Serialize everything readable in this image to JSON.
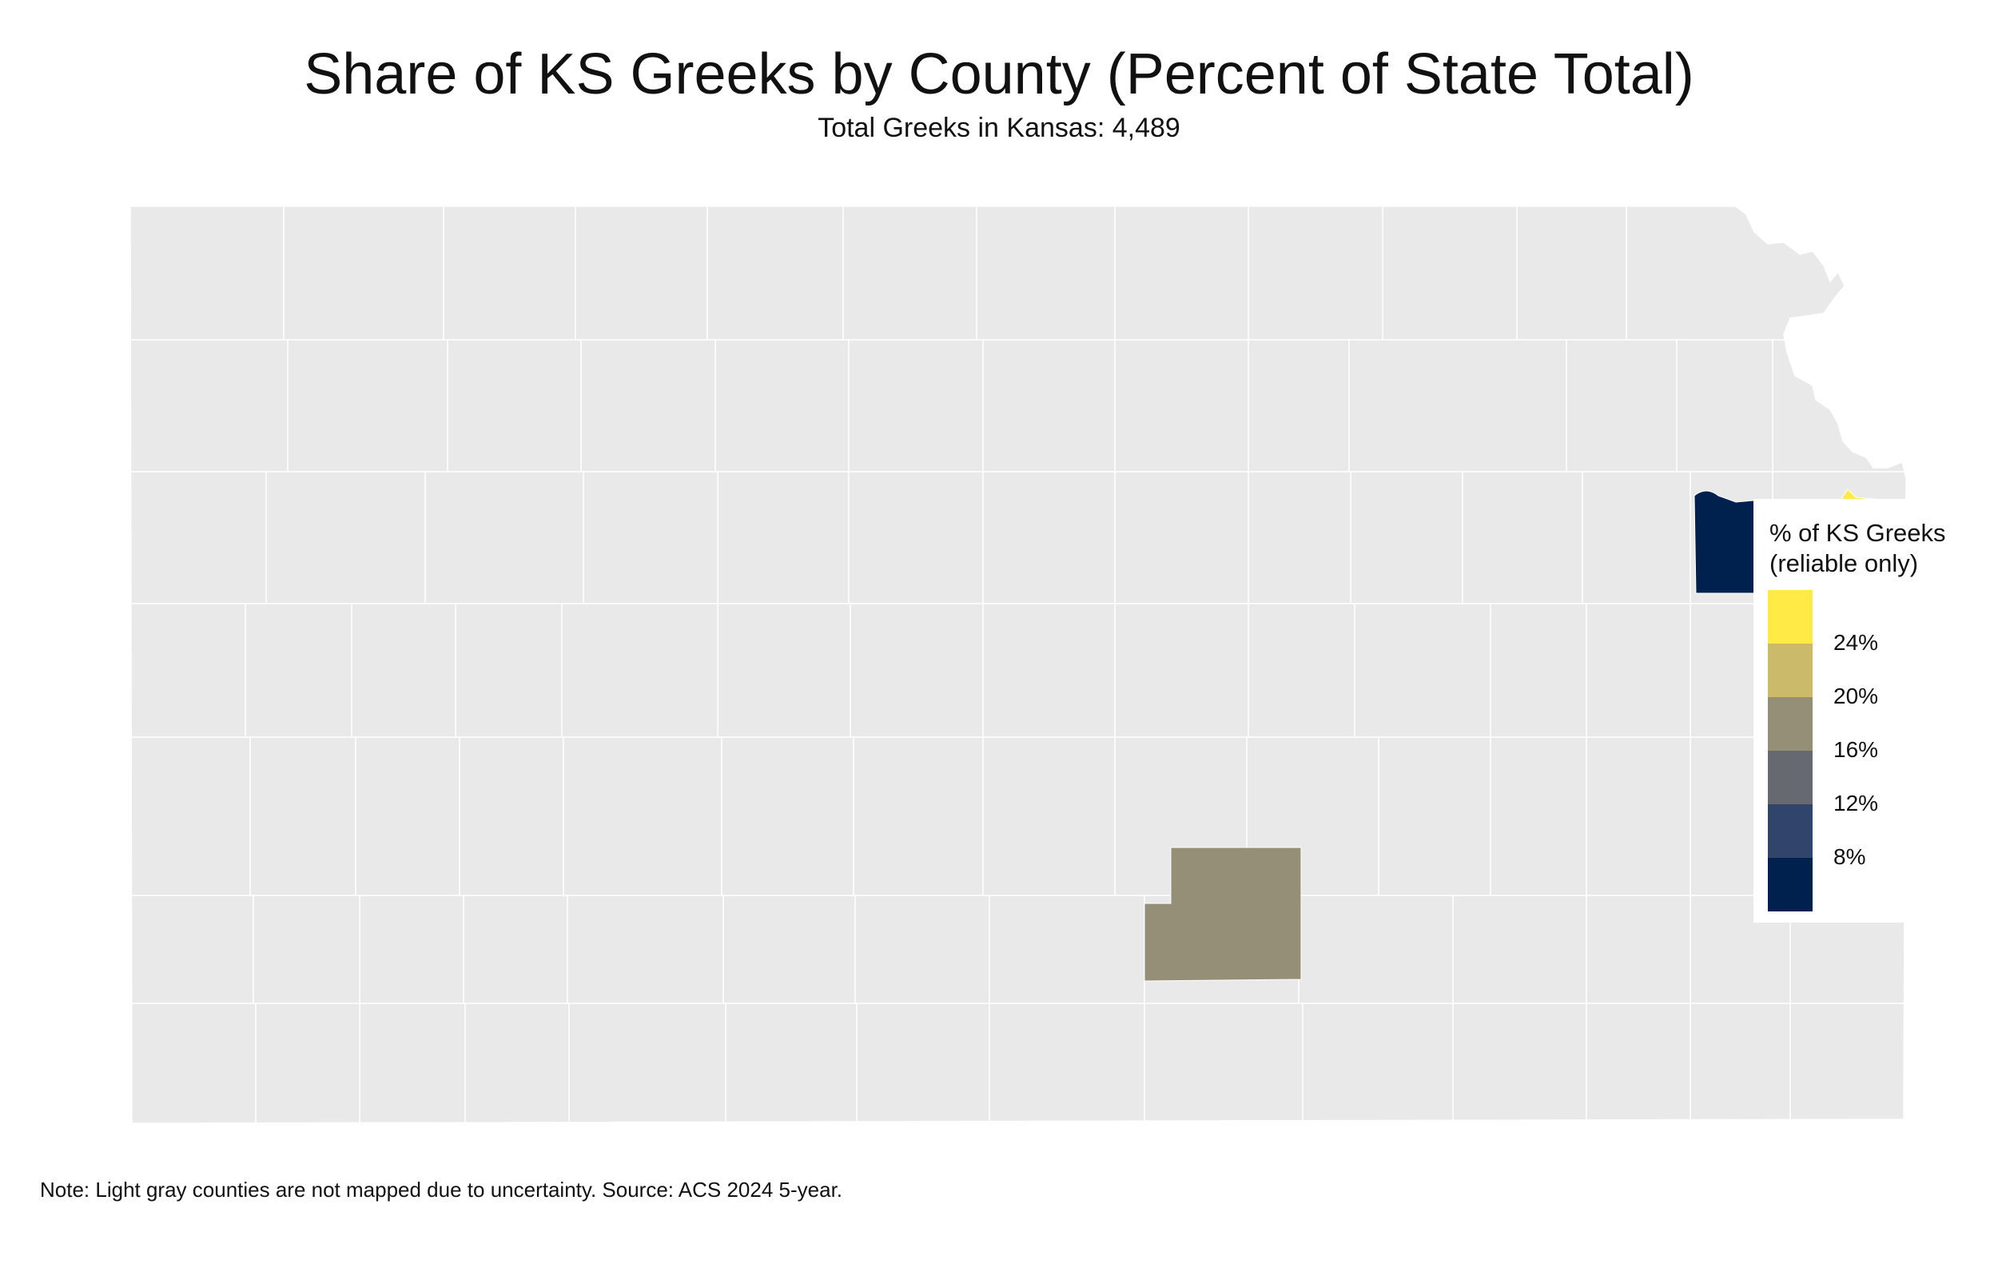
{
  "title": "Share of KS Greeks by County (Percent of State Total)",
  "subtitle": "Total Greeks in Kansas: 4,489",
  "note": "Note: Light gray counties are not mapped due to uncertainty. Source: ACS 2024 5-year.",
  "legend": {
    "title": "% of KS Greeks\n(reliable only)",
    "ticks": [
      "24%",
      "20%",
      "16%",
      "12%",
      "8%"
    ],
    "colors": [
      "#ffea46",
      "#cbba69",
      "#958f78",
      "#666970",
      "#31446b",
      "#00204d"
    ]
  },
  "colors": {
    "unmapped": "#e9e9e9",
    "border": "#ffffff"
  },
  "map_data": {
    "state": "Kansas",
    "highlighted_counties": [
      {
        "id": "ne-county",
        "legend_bin": "below 8%",
        "color": "#00204d"
      },
      {
        "id": "east-edge-county",
        "legend_bin": "above 24%",
        "color": "#ffea46"
      },
      {
        "id": "south-central-county",
        "legend_bin": "16%–20%",
        "color": "#958f78"
      }
    ]
  }
}
